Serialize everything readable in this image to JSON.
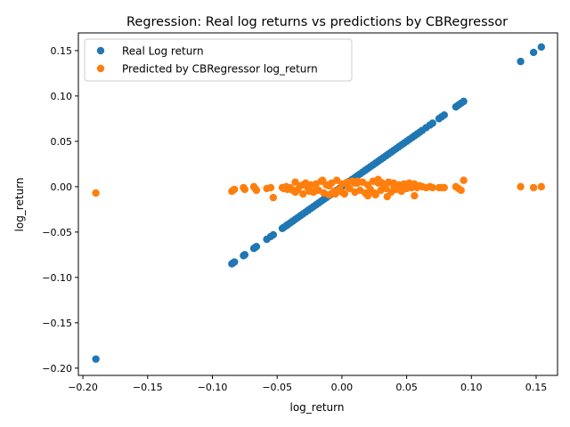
{
  "chart_data": {
    "type": "scatter",
    "title": "Regression: Real log returns vs predictions by CBRegressor",
    "xlabel": "log_return",
    "ylabel": "log_return",
    "xlim": [
      -0.2035,
      0.1665
    ],
    "ylim": [
      -0.208,
      0.1695
    ],
    "xticks": [
      -0.2,
      -0.15,
      -0.1,
      -0.05,
      0.0,
      0.05,
      0.1,
      0.15
    ],
    "xtick_labels": [
      "−0.20",
      "−0.15",
      "−0.10",
      "−0.05",
      "0.00",
      "0.05",
      "0.10",
      "0.15"
    ],
    "yticks": [
      -0.2,
      -0.15,
      -0.1,
      -0.05,
      0.0,
      0.05,
      0.1,
      0.15
    ],
    "ytick_labels": [
      "−0.20",
      "−0.15",
      "−0.10",
      "−0.05",
      "0.00",
      "0.05",
      "0.10",
      "0.15"
    ],
    "grid": false,
    "legend_position": "top-left",
    "series": [
      {
        "name": "Real Log return",
        "color": "#1f77b4",
        "x": [
          -0.19,
          -0.085,
          -0.084,
          -0.083,
          -0.076,
          -0.075,
          -0.068,
          -0.067,
          -0.066,
          -0.058,
          -0.055,
          -0.053,
          -0.046,
          -0.045,
          -0.043,
          -0.042,
          -0.04,
          -0.038,
          -0.036,
          -0.034,
          -0.032,
          -0.03,
          -0.028,
          -0.026,
          -0.024,
          -0.022,
          -0.02,
          -0.018,
          -0.016,
          -0.014,
          -0.012,
          -0.01,
          -0.008,
          -0.006,
          -0.004,
          -0.002,
          0.0,
          0.002,
          0.004,
          0.006,
          0.008,
          0.01,
          0.012,
          0.014,
          0.016,
          0.018,
          0.02,
          0.022,
          0.024,
          0.026,
          0.028,
          0.03,
          0.032,
          0.034,
          0.036,
          0.038,
          0.04,
          0.042,
          0.044,
          0.046,
          0.048,
          0.05,
          0.052,
          0.054,
          0.056,
          0.058,
          0.06,
          0.062,
          0.065,
          0.068,
          0.07,
          0.075,
          0.077,
          0.079,
          0.088,
          0.09,
          0.092,
          0.094,
          0.138,
          0.148,
          0.154
        ],
        "y": [
          -0.19,
          -0.085,
          -0.084,
          -0.083,
          -0.076,
          -0.075,
          -0.068,
          -0.067,
          -0.066,
          -0.058,
          -0.055,
          -0.053,
          -0.046,
          -0.045,
          -0.043,
          -0.042,
          -0.04,
          -0.038,
          -0.036,
          -0.034,
          -0.032,
          -0.03,
          -0.028,
          -0.026,
          -0.024,
          -0.022,
          -0.02,
          -0.018,
          -0.016,
          -0.014,
          -0.012,
          -0.01,
          -0.008,
          -0.006,
          -0.004,
          -0.002,
          0.0,
          0.002,
          0.004,
          0.006,
          0.008,
          0.01,
          0.012,
          0.014,
          0.016,
          0.018,
          0.02,
          0.022,
          0.024,
          0.026,
          0.028,
          0.03,
          0.032,
          0.034,
          0.036,
          0.038,
          0.04,
          0.042,
          0.044,
          0.046,
          0.048,
          0.05,
          0.052,
          0.054,
          0.056,
          0.058,
          0.06,
          0.062,
          0.065,
          0.068,
          0.07,
          0.075,
          0.077,
          0.079,
          0.088,
          0.09,
          0.092,
          0.094,
          0.138,
          0.148,
          0.154
        ]
      },
      {
        "name": "Predicted by CBRegressor log_return",
        "color": "#ff7f0e",
        "x": [
          -0.19,
          -0.085,
          -0.084,
          -0.083,
          -0.076,
          -0.075,
          -0.068,
          -0.067,
          -0.066,
          -0.058,
          -0.055,
          -0.053,
          -0.046,
          -0.045,
          -0.043,
          -0.042,
          -0.04,
          -0.038,
          -0.036,
          -0.034,
          -0.032,
          -0.03,
          -0.028,
          -0.026,
          -0.024,
          -0.022,
          -0.02,
          -0.018,
          -0.016,
          -0.014,
          -0.012,
          -0.01,
          -0.008,
          -0.006,
          -0.004,
          -0.002,
          0.0,
          0.002,
          0.004,
          0.006,
          0.008,
          0.01,
          0.012,
          0.014,
          0.016,
          0.018,
          0.02,
          0.022,
          0.024,
          0.026,
          0.028,
          0.03,
          0.032,
          0.034,
          0.036,
          0.038,
          0.04,
          0.042,
          0.044,
          0.046,
          0.048,
          0.05,
          0.052,
          0.054,
          0.056,
          0.058,
          0.06,
          0.062,
          0.065,
          0.068,
          0.07,
          0.075,
          0.077,
          0.079,
          0.088,
          0.09,
          0.092,
          0.094,
          0.138,
          0.148,
          0.154,
          -0.036,
          -0.03,
          -0.02,
          -0.01,
          -0.005,
          0.005,
          0.012,
          0.02,
          0.028,
          0.035,
          0.045,
          0.052,
          -0.025,
          -0.015,
          0.0,
          0.01,
          0.025,
          0.04,
          0.056,
          0.03
        ],
        "y": [
          -0.007,
          -0.005,
          -0.004,
          -0.003,
          -0.001,
          -0.003,
          0.0,
          -0.002,
          -0.004,
          -0.002,
          -0.001,
          -0.012,
          -0.001,
          -0.002,
          0.0,
          -0.003,
          -0.001,
          -0.004,
          0.005,
          -0.003,
          0.001,
          -0.008,
          0.004,
          -0.002,
          0.002,
          -0.006,
          0.003,
          -0.004,
          0.006,
          -0.007,
          0.002,
          -0.009,
          0.004,
          -0.005,
          0.007,
          -0.003,
          0.003,
          -0.008,
          0.005,
          -0.002,
          0.006,
          -0.006,
          0.004,
          -0.004,
          0.005,
          -0.007,
          0.002,
          -0.003,
          0.006,
          -0.009,
          0.008,
          -0.004,
          0.003,
          -0.002,
          0.005,
          -0.006,
          0.004,
          -0.003,
          0.002,
          -0.005,
          0.003,
          -0.002,
          0.004,
          -0.001,
          0.003,
          -0.001,
          0.001,
          0.0,
          -0.001,
          0.0,
          -0.001,
          -0.001,
          -0.001,
          -0.001,
          0.0,
          -0.002,
          -0.004,
          0.007,
          0.0,
          -0.001,
          0.0,
          -0.006,
          0.002,
          -0.004,
          0.001,
          -0.008,
          -0.001,
          0.006,
          -0.01,
          0.004,
          -0.011,
          0.0,
          0.003,
          -0.005,
          0.007,
          -0.006,
          0.004,
          -0.007,
          0.001,
          -0.01,
          0.005
        ]
      }
    ]
  }
}
